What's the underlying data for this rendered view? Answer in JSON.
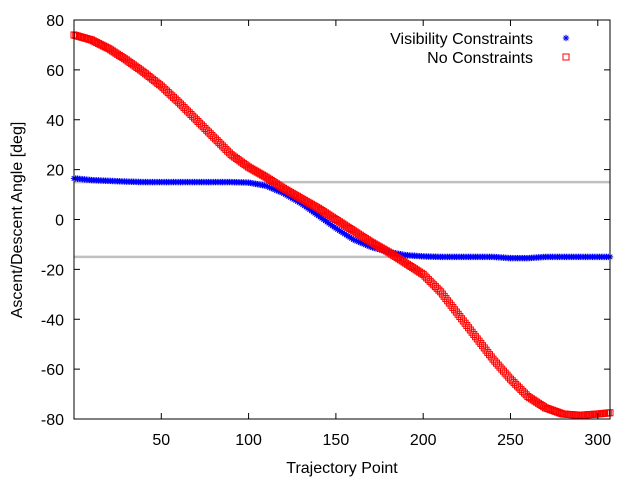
{
  "chart_data": {
    "type": "scatter",
    "title": "",
    "xlabel": "Trajectory Point",
    "ylabel": "Ascent/Descent Angle [deg]",
    "xlim": [
      0,
      307
    ],
    "ylim": [
      -80,
      80
    ],
    "x_ticks": [
      50,
      100,
      150,
      200,
      250,
      300
    ],
    "y_ticks": [
      -80,
      -60,
      -40,
      -20,
      0,
      20,
      40,
      60,
      80
    ],
    "grid": false,
    "legend_position": "top-right",
    "reference_lines": [
      {
        "y": 15,
        "color": "#c0c0c0"
      },
      {
        "y": -15,
        "color": "#c0c0c0"
      }
    ],
    "series": [
      {
        "name": "Visibility Constraints",
        "marker": "star",
        "color": "#0000ff",
        "x": [
          0,
          10,
          20,
          30,
          40,
          50,
          60,
          70,
          80,
          90,
          100,
          110,
          120,
          130,
          140,
          150,
          160,
          170,
          180,
          190,
          200,
          210,
          220,
          230,
          240,
          250,
          260,
          270,
          280,
          290,
          300,
          307
        ],
        "y": [
          16.5,
          15.8,
          15.5,
          15.2,
          15.0,
          15.0,
          15.0,
          15.0,
          15.0,
          15.0,
          14.8,
          13.5,
          10.5,
          6.5,
          1.5,
          -3.5,
          -8.0,
          -11.0,
          -13.0,
          -14.3,
          -14.8,
          -15.0,
          -15.0,
          -15.0,
          -15.0,
          -15.5,
          -15.5,
          -15.0,
          -15.0,
          -15.0,
          -15.0,
          -15.0
        ]
      },
      {
        "name": "No Constraints",
        "marker": "square",
        "color": "#ff0000",
        "x": [
          0,
          10,
          20,
          30,
          40,
          50,
          60,
          70,
          80,
          90,
          100,
          110,
          120,
          130,
          140,
          150,
          160,
          170,
          180,
          190,
          200,
          210,
          220,
          230,
          240,
          250,
          260,
          270,
          280,
          290,
          300,
          307
        ],
        "y": [
          74.0,
          72.0,
          68.5,
          64.0,
          59.0,
          53.5,
          47.0,
          40.0,
          33.0,
          26.0,
          21.0,
          17.0,
          12.5,
          8.5,
          4.5,
          0.0,
          -4.5,
          -9.0,
          -13.0,
          -17.5,
          -22.0,
          -29.0,
          -38.0,
          -47.0,
          -56.0,
          -64.0,
          -71.0,
          -75.5,
          -78.0,
          -78.5,
          -78.0,
          -77.5
        ]
      }
    ]
  }
}
